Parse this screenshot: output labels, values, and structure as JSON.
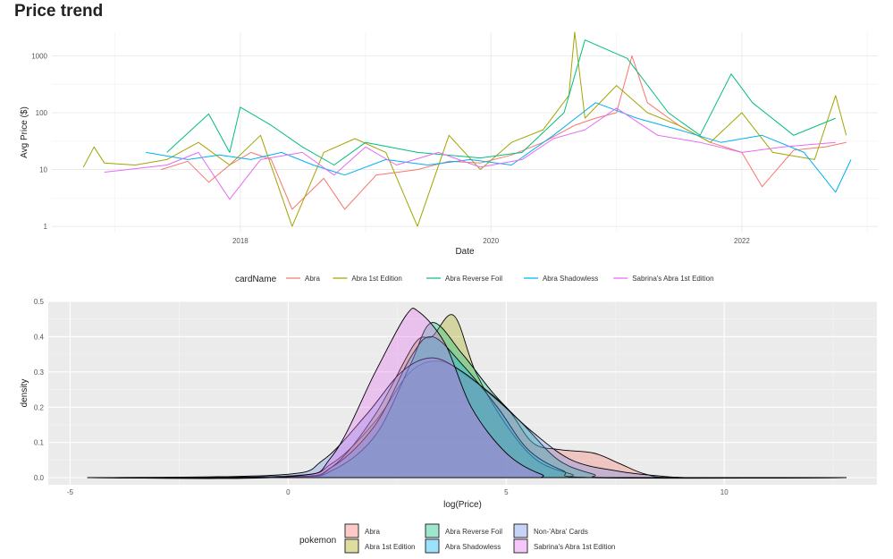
{
  "page": {
    "title": "Price trend"
  },
  "colors": {
    "Abra": "#F8766D",
    "Abra 1st Edition": "#A3A500",
    "Abra Reverse Foil": "#00BF7D",
    "Abra Shadowless": "#00B0F6",
    "Sabrina's Abra 1st Edition": "#E76BF3",
    "Non-'Abra' Cards": "#6A8CE8"
  },
  "chart_data": [
    {
      "type": "line",
      "title": "",
      "xlabel": "Date",
      "ylabel": "Avg Price ($)",
      "y_scale": "log10",
      "ylim": [
        0.78,
        2600
      ],
      "xlim": [
        "2016-07-01",
        "2023-02-01"
      ],
      "x_ticks": [
        {
          "value": "2018-01-01",
          "label": "2018"
        },
        {
          "value": "2020-01-01",
          "label": "2020"
        },
        {
          "value": "2022-01-01",
          "label": "2022"
        }
      ],
      "y_ticks": [
        {
          "value": 1,
          "label": "1"
        },
        {
          "value": 10,
          "label": "10"
        },
        {
          "value": 100,
          "label": "100"
        },
        {
          "value": 1000,
          "label": "1000"
        }
      ],
      "grid": true,
      "legend": {
        "title": "cardName",
        "position": "bottom"
      },
      "series": [
        {
          "name": "Abra",
          "points": [
            [
              "2017-05-15",
              10
            ],
            [
              "2017-08-01",
              14
            ],
            [
              "2017-10-01",
              6
            ],
            [
              "2017-12-01",
              12
            ],
            [
              "2018-02-01",
              20
            ],
            [
              "2018-04-01",
              15
            ],
            [
              "2018-06-01",
              2
            ],
            [
              "2018-09-01",
              7
            ],
            [
              "2018-11-01",
              2
            ],
            [
              "2019-02-01",
              8
            ],
            [
              "2019-06-01",
              10
            ],
            [
              "2019-09-01",
              14
            ],
            [
              "2019-12-01",
              13
            ],
            [
              "2020-03-01",
              18
            ],
            [
              "2020-06-01",
              30
            ],
            [
              "2020-09-01",
              60
            ],
            [
              "2020-11-01",
              80
            ],
            [
              "2021-01-01",
              100
            ],
            [
              "2021-02-15",
              1000
            ],
            [
              "2021-04-01",
              150
            ],
            [
              "2021-07-01",
              60
            ],
            [
              "2021-10-01",
              30
            ],
            [
              "2022-01-01",
              20
            ],
            [
              "2022-03-01",
              5
            ],
            [
              "2022-06-01",
              22
            ],
            [
              "2022-09-01",
              25
            ],
            [
              "2022-11-01",
              30
            ]
          ]
        },
        {
          "name": "Abra 1st Edition",
          "points": [
            [
              "2016-10-01",
              11
            ],
            [
              "2016-11-01",
              25
            ],
            [
              "2016-12-01",
              13
            ],
            [
              "2017-03-01",
              12
            ],
            [
              "2017-06-01",
              15
            ],
            [
              "2017-09-01",
              30
            ],
            [
              "2017-12-01",
              12
            ],
            [
              "2018-03-01",
              40
            ],
            [
              "2018-06-01",
              1
            ],
            [
              "2018-09-01",
              20
            ],
            [
              "2018-12-01",
              35
            ],
            [
              "2019-03-01",
              20
            ],
            [
              "2019-06-01",
              1
            ],
            [
              "2019-09-01",
              40
            ],
            [
              "2019-12-01",
              10
            ],
            [
              "2020-03-01",
              30
            ],
            [
              "2020-06-01",
              50
            ],
            [
              "2020-08-15",
              200
            ],
            [
              "2020-09-01",
              2600
            ],
            [
              "2020-10-01",
              80
            ],
            [
              "2021-01-01",
              300
            ],
            [
              "2021-04-01",
              100
            ],
            [
              "2021-07-01",
              60
            ],
            [
              "2021-10-01",
              30
            ],
            [
              "2022-01-01",
              100
            ],
            [
              "2022-04-01",
              20
            ],
            [
              "2022-08-01",
              15
            ],
            [
              "2022-10-01",
              200
            ],
            [
              "2022-11-01",
              40
            ]
          ]
        },
        {
          "name": "Abra Reverse Foil",
          "points": [
            [
              "2017-06-01",
              20
            ],
            [
              "2017-10-01",
              95
            ],
            [
              "2017-12-01",
              20
            ],
            [
              "2018-01-01",
              125
            ],
            [
              "2018-04-01",
              60
            ],
            [
              "2018-07-01",
              25
            ],
            [
              "2018-10-01",
              12
            ],
            [
              "2019-01-01",
              30
            ],
            [
              "2019-06-01",
              20
            ],
            [
              "2019-12-01",
              16
            ],
            [
              "2020-04-01",
              20
            ],
            [
              "2020-08-01",
              100
            ],
            [
              "2020-10-01",
              1900
            ],
            [
              "2021-02-01",
              900
            ],
            [
              "2021-06-01",
              100
            ],
            [
              "2021-09-01",
              40
            ],
            [
              "2021-12-01",
              480
            ],
            [
              "2022-02-01",
              150
            ],
            [
              "2022-06-01",
              40
            ],
            [
              "2022-10-01",
              80
            ]
          ]
        },
        {
          "name": "Abra Shadowless",
          "points": [
            [
              "2017-04-01",
              20
            ],
            [
              "2017-08-01",
              15
            ],
            [
              "2017-11-01",
              18
            ],
            [
              "2018-02-01",
              15
            ],
            [
              "2018-05-01",
              20
            ],
            [
              "2018-08-01",
              12
            ],
            [
              "2018-11-01",
              8
            ],
            [
              "2019-03-01",
              15
            ],
            [
              "2019-07-01",
              12
            ],
            [
              "2019-11-01",
              15
            ],
            [
              "2020-03-01",
              12
            ],
            [
              "2020-07-01",
              40
            ],
            [
              "2020-11-01",
              150
            ],
            [
              "2021-03-01",
              80
            ],
            [
              "2021-07-01",
              50
            ],
            [
              "2021-11-01",
              30
            ],
            [
              "2022-03-01",
              40
            ],
            [
              "2022-07-01",
              20
            ],
            [
              "2022-10-01",
              4
            ],
            [
              "2022-11-15",
              15
            ]
          ]
        },
        {
          "name": "Sabrina's Abra 1st Edition",
          "points": [
            [
              "2016-12-01",
              9
            ],
            [
              "2017-06-01",
              12
            ],
            [
              "2017-09-01",
              20
            ],
            [
              "2017-12-01",
              3
            ],
            [
              "2018-03-01",
              15
            ],
            [
              "2018-07-01",
              20
            ],
            [
              "2018-10-01",
              8
            ],
            [
              "2019-01-01",
              25
            ],
            [
              "2019-04-01",
              12
            ],
            [
              "2019-08-01",
              20
            ],
            [
              "2019-12-01",
              11
            ],
            [
              "2020-04-01",
              15
            ],
            [
              "2020-07-01",
              35
            ],
            [
              "2020-10-01",
              50
            ],
            [
              "2021-01-01",
              120
            ],
            [
              "2021-05-01",
              40
            ],
            [
              "2021-09-01",
              30
            ],
            [
              "2022-01-01",
              20
            ],
            [
              "2022-05-01",
              25
            ],
            [
              "2022-10-01",
              30
            ]
          ]
        }
      ]
    },
    {
      "type": "area",
      "title": "",
      "xlabel": "log(Price)",
      "ylabel": "density",
      "xlim": [
        -5.5,
        13.5
      ],
      "ylim": [
        -0.02,
        0.5
      ],
      "x_ticks": [
        {
          "value": -5,
          "label": "-5"
        },
        {
          "value": 0,
          "label": "0"
        },
        {
          "value": 5,
          "label": "5"
        },
        {
          "value": 10,
          "label": "10"
        }
      ],
      "y_ticks": [
        {
          "value": 0.0,
          "label": "0.0"
        },
        {
          "value": 0.1,
          "label": "0.1"
        },
        {
          "value": 0.2,
          "label": "0.2"
        },
        {
          "value": 0.3,
          "label": "0.3"
        },
        {
          "value": 0.4,
          "label": "0.4"
        },
        {
          "value": 0.5,
          "label": "0.5"
        }
      ],
      "grid": true,
      "legend": {
        "title": "pokemon",
        "position": "bottom"
      },
      "series": [
        {
          "name": "Abra",
          "points": [
            [
              -4.6,
              0
            ],
            [
              0,
              0.005
            ],
            [
              1,
              0.04
            ],
            [
              2,
              0.16
            ],
            [
              2.8,
              0.3
            ],
            [
              3.5,
              0.33
            ],
            [
              4.2,
              0.28
            ],
            [
              5,
              0.2
            ],
            [
              5.6,
              0.1
            ],
            [
              6.2,
              0.08
            ],
            [
              7,
              0.07
            ],
            [
              7.6,
              0.04
            ],
            [
              8.2,
              0.01
            ],
            [
              9,
              0
            ],
            [
              12.8,
              0
            ]
          ]
        },
        {
          "name": "Abra 1st Edition",
          "points": [
            [
              -4.6,
              0
            ],
            [
              0,
              0.002
            ],
            [
              1,
              0.03
            ],
            [
              2,
              0.18
            ],
            [
              2.9,
              0.38
            ],
            [
              3.3,
              0.4
            ],
            [
              3.8,
              0.46
            ],
            [
              4.3,
              0.3
            ],
            [
              5,
              0.15
            ],
            [
              5.7,
              0.05
            ],
            [
              6.5,
              0.01
            ],
            [
              7,
              0
            ],
            [
              12.8,
              0
            ]
          ]
        },
        {
          "name": "Abra Reverse Foil",
          "points": [
            [
              -4.6,
              0
            ],
            [
              0,
              0.002
            ],
            [
              1,
              0.02
            ],
            [
              2,
              0.12
            ],
            [
              2.8,
              0.32
            ],
            [
              3.3,
              0.44
            ],
            [
              4,
              0.35
            ],
            [
              4.7,
              0.24
            ],
            [
              5.4,
              0.15
            ],
            [
              6.2,
              0.05
            ],
            [
              7,
              0.01
            ],
            [
              7.5,
              0
            ],
            [
              12.8,
              0
            ]
          ]
        },
        {
          "name": "Abra Shadowless",
          "points": [
            [
              -4.6,
              0
            ],
            [
              0,
              0.002
            ],
            [
              1,
              0.03
            ],
            [
              2,
              0.15
            ],
            [
              2.8,
              0.34
            ],
            [
              3.3,
              0.4
            ],
            [
              4,
              0.32
            ],
            [
              4.8,
              0.2
            ],
            [
              5.5,
              0.08
            ],
            [
              6.3,
              0.02
            ],
            [
              7,
              0
            ],
            [
              12.8,
              0
            ]
          ]
        },
        {
          "name": "Non-'Abra' Cards",
          "points": [
            [
              -4.6,
              0
            ],
            [
              -0.2,
              0.008
            ],
            [
              0.8,
              0.05
            ],
            [
              1.8,
              0.18
            ],
            [
              2.6,
              0.3
            ],
            [
              3.3,
              0.34
            ],
            [
              4,
              0.3
            ],
            [
              4.8,
              0.22
            ],
            [
              5.6,
              0.13
            ],
            [
              6.5,
              0.05
            ],
            [
              7.5,
              0.02
            ],
            [
              8.5,
              0.005
            ],
            [
              9.5,
              0
            ],
            [
              12.8,
              0
            ]
          ]
        },
        {
          "name": "Sabrina's Abra 1st Edition",
          "points": [
            [
              -4.6,
              0
            ],
            [
              0,
              0.003
            ],
            [
              1,
              0.06
            ],
            [
              2,
              0.3
            ],
            [
              2.7,
              0.46
            ],
            [
              3,
              0.47
            ],
            [
              3.6,
              0.38
            ],
            [
              4.2,
              0.2
            ],
            [
              5,
              0.07
            ],
            [
              5.8,
              0.01
            ],
            [
              6.5,
              0
            ],
            [
              12.8,
              0
            ]
          ]
        }
      ]
    }
  ]
}
